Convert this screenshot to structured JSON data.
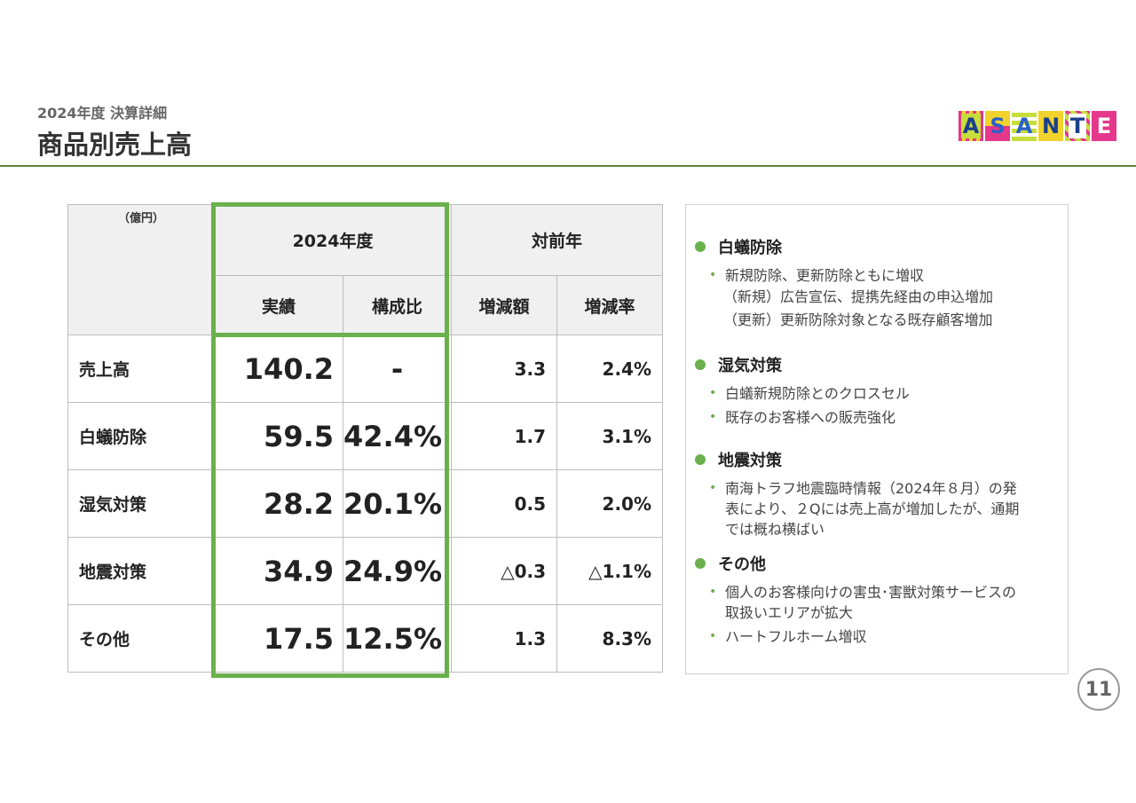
{
  "header": {
    "subtitle": "2024年度 決算詳細",
    "title": "商品別売上高"
  },
  "logo": {
    "letters": [
      "A",
      "S",
      "A",
      "N",
      "T",
      "E"
    ]
  },
  "table": {
    "unit": "（億円）",
    "group_fy": "2024年度",
    "group_yoy": "対前年",
    "col_actual": "実績",
    "col_ratio": "構成比",
    "col_diff": "増減額",
    "col_rate": "増減率",
    "rows": [
      {
        "label": "売上高",
        "actual": "140.2",
        "ratio": "-",
        "diff": "3.3",
        "rate": "2.4%"
      },
      {
        "label": "白蟻防除",
        "actual": "59.5",
        "ratio": "42.4%",
        "diff": "1.7",
        "rate": "3.1%"
      },
      {
        "label": "湿気対策",
        "actual": "28.2",
        "ratio": "20.1%",
        "diff": "0.5",
        "rate": "2.0%"
      },
      {
        "label": "地震対策",
        "actual": "34.9",
        "ratio": "24.9%",
        "diff": "△0.3",
        "rate": "△1.1%"
      },
      {
        "label": "その他",
        "actual": "17.5",
        "ratio": "12.5%",
        "diff": "1.3",
        "rate": "8.3%"
      }
    ]
  },
  "panel": {
    "sections": [
      {
        "heading": "白蟻防除",
        "items": [
          "新規防除、更新防除ともに増収"
        ],
        "subs": [
          "（新規）広告宣伝、提携先経由の申込増加",
          "（更新）更新防除対象となる既存顧客増加"
        ]
      },
      {
        "heading": "湿気対策",
        "items": [
          "白蟻新規防除とのクロスセル",
          "既存のお客様への販売強化"
        ]
      },
      {
        "heading": "地震対策",
        "items": [
          "南海トラフ地震臨時情報（2024年８月）の発表により、２Qには売上高が増加したが、通期では概ね横ばい"
        ]
      },
      {
        "heading": "その他",
        "items": [
          "個人のお客様向けの害虫･害獣対策サービスの取扱いエリアが拡大",
          "ハートフルホーム増収"
        ]
      }
    ]
  },
  "page_number": "11",
  "colors": {
    "accent_green": "#6ab04c",
    "header_rule": "#5f7f3a"
  }
}
